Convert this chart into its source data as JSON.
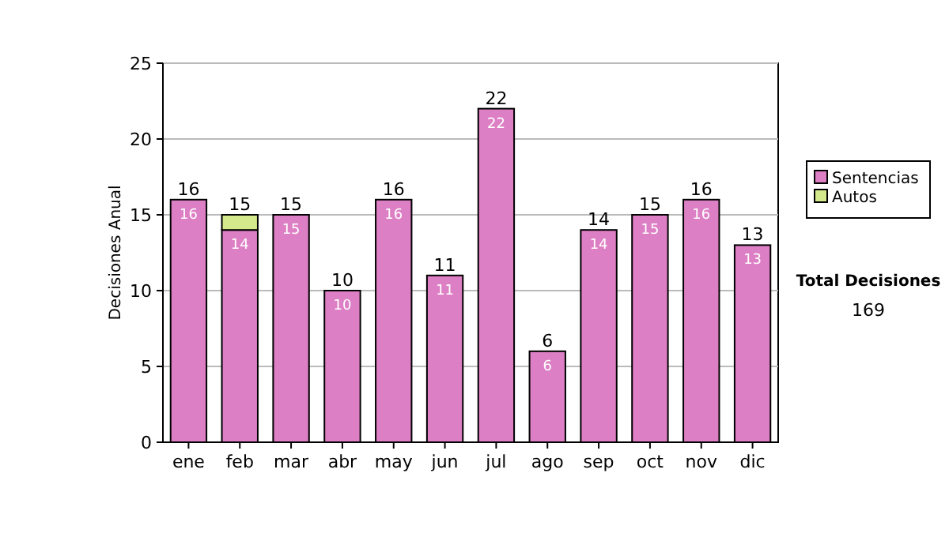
{
  "chart_data": {
    "type": "bar",
    "stacked": true,
    "ylabel": "Decisiones Anual",
    "categories": [
      "ene",
      "feb",
      "mar",
      "abr",
      "may",
      "jun",
      "jul",
      "ago",
      "sep",
      "oct",
      "nov",
      "dic"
    ],
    "series": [
      {
        "name": "Sentencias",
        "color": "#dd7fc4",
        "values": [
          16,
          14,
          15,
          10,
          16,
          11,
          22,
          6,
          14,
          15,
          16,
          13
        ],
        "value_labels": [
          "16",
          "14",
          "15",
          "10",
          "16",
          "11",
          "22",
          "6",
          "14",
          "15",
          "16",
          "13"
        ]
      },
      {
        "name": "Autos",
        "color": "#d4e88c",
        "values": [
          0,
          1,
          0,
          0,
          0,
          0,
          0,
          0,
          0,
          0,
          0,
          0
        ]
      }
    ],
    "totals": [
      "16",
      "15",
      "15",
      "10",
      "16",
      "11",
      "22",
      "6",
      "14",
      "15",
      "16",
      "13"
    ],
    "ylim": [
      0,
      25
    ],
    "yticks": [
      0,
      5,
      10,
      15,
      20,
      25
    ],
    "grid": "y",
    "legend": "right",
    "annotations": [
      "Total Decisiones",
      "169"
    ]
  }
}
